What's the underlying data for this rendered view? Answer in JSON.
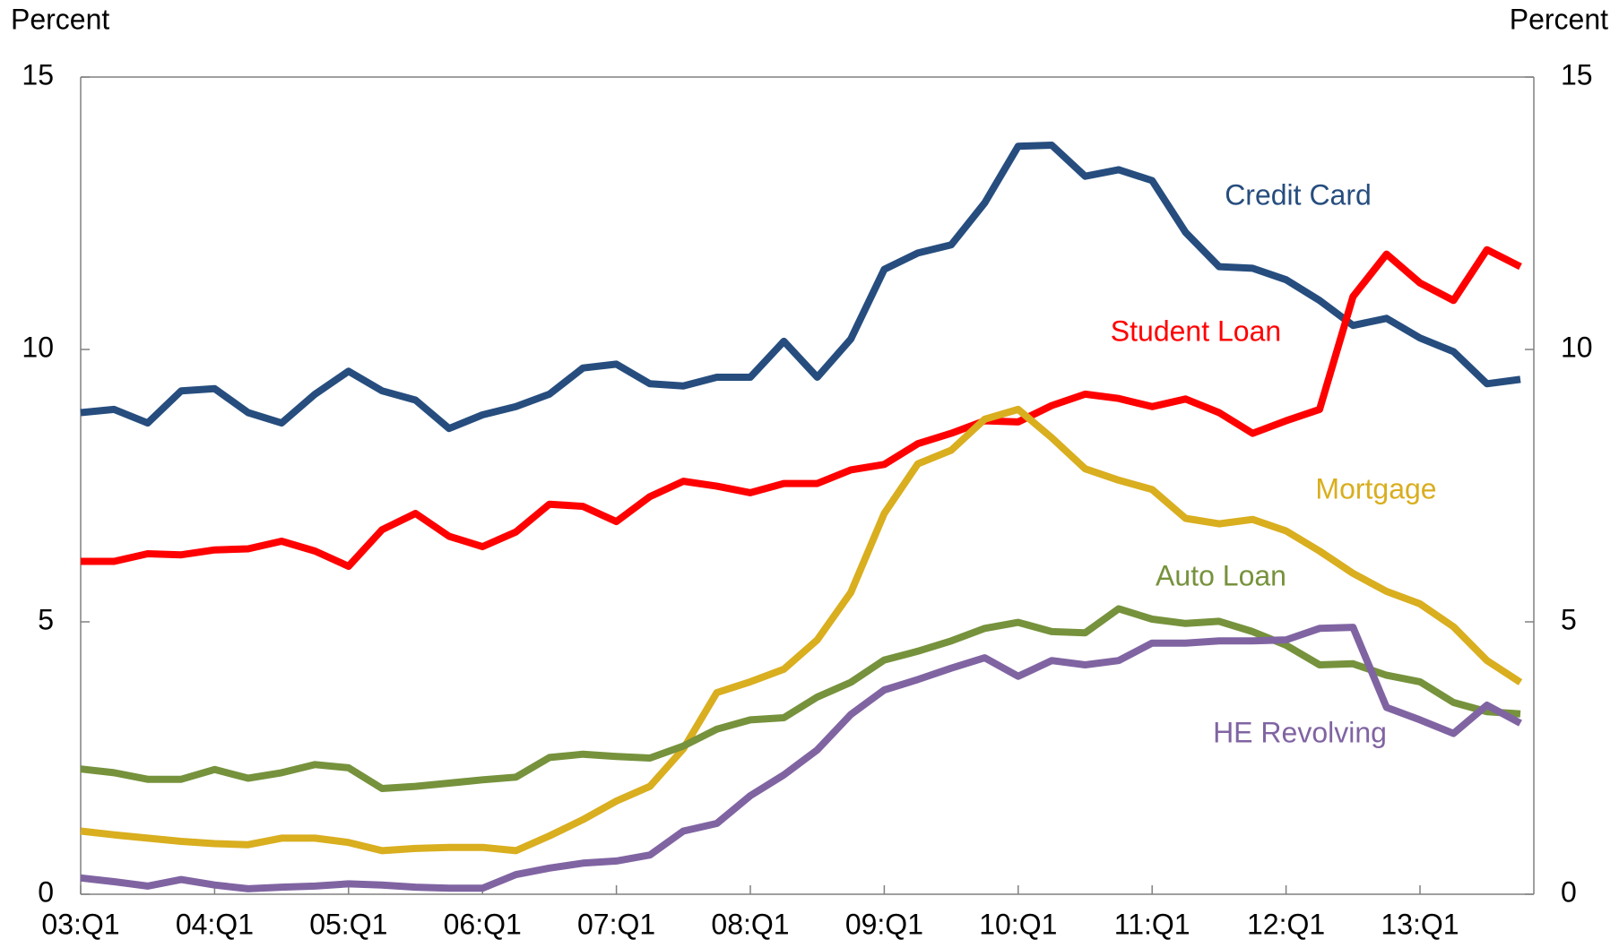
{
  "chart_data": {
    "type": "line",
    "y_label": "Percent",
    "y2_label": "Percent",
    "categories": [
      "03:Q1",
      null,
      null,
      null,
      "04:Q1",
      null,
      null,
      null,
      "05:Q1",
      null,
      null,
      null,
      "06:Q1",
      null,
      null,
      null,
      "07:Q1",
      null,
      null,
      null,
      "08:Q1",
      null,
      null,
      null,
      "09:Q1",
      null,
      null,
      null,
      "10:Q1",
      null,
      null,
      null,
      "11:Q1",
      null,
      null,
      null,
      "12:Q1",
      null,
      null,
      null,
      "13:Q1",
      null,
      null,
      null
    ],
    "ylim": [
      0,
      15
    ],
    "yticks": [
      0,
      5,
      10,
      15
    ],
    "y2lim": [
      0,
      15
    ],
    "y2ticks": [
      0,
      5,
      10,
      15
    ],
    "series": [
      {
        "name": "Credit Card",
        "color": "#264d7e",
        "values": [
          8.84,
          8.9,
          8.65,
          9.24,
          9.28,
          8.84,
          8.65,
          9.18,
          9.6,
          9.24,
          9.07,
          8.55,
          8.8,
          8.95,
          9.18,
          9.66,
          9.73,
          9.37,
          9.33,
          9.49,
          9.49,
          10.15,
          9.49,
          10.19,
          11.47,
          11.77,
          11.92,
          12.69,
          13.73,
          13.75,
          13.18,
          13.3,
          13.1,
          12.15,
          11.52,
          11.49,
          11.28,
          10.9,
          10.44,
          10.57,
          10.21,
          9.96,
          9.37,
          9.45
        ]
      },
      {
        "name": "Student Loan",
        "color": "#ff0000",
        "values": [
          6.11,
          6.11,
          6.25,
          6.23,
          6.32,
          6.34,
          6.48,
          6.3,
          6.02,
          6.69,
          6.99,
          6.57,
          6.38,
          6.65,
          7.16,
          7.12,
          6.84,
          7.3,
          7.58,
          7.49,
          7.37,
          7.54,
          7.54,
          7.79,
          7.89,
          8.27,
          8.46,
          8.69,
          8.67,
          8.97,
          9.18,
          9.1,
          8.95,
          9.09,
          8.84,
          8.46,
          8.69,
          8.9,
          10.97,
          11.75,
          11.22,
          10.9,
          11.83,
          11.52
        ]
      },
      {
        "name": "Mortgage",
        "color": "#d9ae1f",
        "values": [
          1.16,
          1.09,
          1.03,
          0.97,
          0.93,
          0.91,
          1.03,
          1.03,
          0.95,
          0.8,
          0.84,
          0.86,
          0.86,
          0.8,
          1.07,
          1.37,
          1.71,
          1.98,
          2.67,
          3.7,
          3.9,
          4.13,
          4.67,
          5.54,
          6.99,
          7.9,
          8.15,
          8.72,
          8.9,
          8.38,
          7.81,
          7.6,
          7.43,
          6.9,
          6.8,
          6.88,
          6.67,
          6.3,
          5.89,
          5.56,
          5.33,
          4.91,
          4.29,
          3.89
        ]
      },
      {
        "name": "Auto Loan",
        "color": "#76923c",
        "values": [
          2.3,
          2.23,
          2.11,
          2.11,
          2.29,
          2.13,
          2.23,
          2.38,
          2.32,
          1.94,
          1.98,
          2.04,
          2.1,
          2.15,
          2.51,
          2.57,
          2.53,
          2.5,
          2.72,
          3.03,
          3.2,
          3.24,
          3.62,
          3.89,
          4.3,
          4.46,
          4.65,
          4.88,
          4.99,
          4.82,
          4.8,
          5.24,
          5.05,
          4.97,
          5.01,
          4.82,
          4.57,
          4.21,
          4.23,
          4.02,
          3.9,
          3.52,
          3.35,
          3.31
        ]
      },
      {
        "name": "HE Revolving",
        "color": "#8064a2",
        "values": [
          0.3,
          0.23,
          0.15,
          0.27,
          0.17,
          0.1,
          0.13,
          0.15,
          0.19,
          0.17,
          0.13,
          0.11,
          0.11,
          0.36,
          0.48,
          0.57,
          0.61,
          0.72,
          1.16,
          1.3,
          1.81,
          2.19,
          2.65,
          3.3,
          3.75,
          3.94,
          4.15,
          4.34,
          4.0,
          4.29,
          4.21,
          4.29,
          4.61,
          4.61,
          4.65,
          4.65,
          4.67,
          4.88,
          4.9,
          3.43,
          3.2,
          2.95,
          3.47,
          3.14
        ]
      }
    ]
  }
}
